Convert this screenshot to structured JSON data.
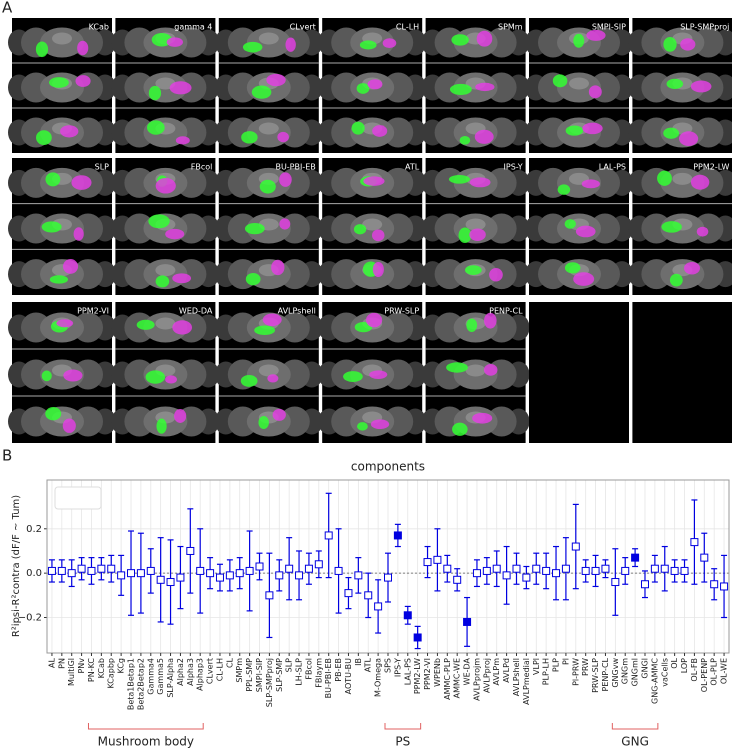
{
  "panel_a": {
    "label": "A",
    "tiles": [
      "KCab",
      "gamma 4",
      "CLvert",
      "CL-LH",
      "SPMm",
      "SMPl-SIP",
      "SLP-SMPproj",
      "SLP",
      "FBcol",
      "BU-PBI-EB",
      "ATL",
      "IPS-Y",
      "LAL-PS",
      "PPM2-LW",
      "PPM2-VI",
      "WED-DA",
      "AVLPshell",
      "PRW-SLP",
      "PENP-CL"
    ]
  },
  "chart_data": {
    "type": "errorbar",
    "panel_label": "B",
    "title": "components",
    "ylabel": "R²ipsi-R²contra (dF/F ~ Tum)",
    "categories": [
      "AL",
      "PN",
      "MultiGl",
      "PNv",
      "PN-KC",
      "KCab",
      "KCapbp",
      "KCg",
      "Beta1Betap1",
      "Beta2Betap2",
      "Gamma4",
      "Gamma5",
      "SLP-Alpha",
      "Alpha2",
      "Alpha3",
      "Alphap3",
      "CLvert",
      "CL-LH",
      "CL",
      "SMPm",
      "PPL-SMP",
      "SMPl-SIP",
      "SLP-SMPproj",
      "SLP-SMP",
      "SLP",
      "LH-SLP",
      "FBcol",
      "FBlaym",
      "BU-PBI-EB",
      "PB-EB",
      "AOTU-BU",
      "IB",
      "ATL",
      "M-Omega",
      "SPS",
      "IPS-Y",
      "LAL-PS",
      "PPM2-LW",
      "PPM2-VI",
      "WPENb",
      "AMMC-PLP",
      "AMMC-WE",
      "WE-DA",
      "AVLPprojm",
      "AVLPproj",
      "AVLPm",
      "AVLPd",
      "AVLPshell",
      "AVLPmedial",
      "VLPl",
      "PLP-LH",
      "PLP",
      "Pl",
      "Pl-PRW",
      "PRW",
      "PRW-SLP",
      "PENP-CL",
      "GNGvw",
      "GNGm",
      "GNGml",
      "GNGl",
      "GNG-AMMC",
      "vaCells",
      "OL",
      "LOP",
      "OL-FB",
      "OL-PENP",
      "OL-PLP",
      "OL-WE"
    ],
    "values": [
      0.01,
      0.01,
      0.0,
      0.02,
      0.01,
      0.02,
      0.02,
      -0.01,
      0.0,
      0.0,
      0.01,
      -0.03,
      -0.04,
      -0.02,
      0.1,
      0.01,
      0.0,
      -0.02,
      -0.01,
      0.0,
      0.01,
      0.03,
      -0.1,
      -0.01,
      0.02,
      -0.01,
      0.02,
      0.04,
      0.17,
      0.01,
      -0.09,
      -0.01,
      -0.1,
      -0.15,
      -0.02,
      0.17,
      -0.19,
      -0.29,
      0.05,
      0.06,
      0.02,
      -0.03,
      -0.22,
      0.0,
      0.01,
      0.02,
      -0.01,
      0.02,
      -0.02,
      0.02,
      0.01,
      0.0,
      0.02,
      0.12,
      0.01,
      0.01,
      0.02,
      -0.04,
      0.01,
      0.07,
      -0.05,
      0.02,
      0.02,
      0.01,
      0.01,
      0.14,
      0.07,
      -0.05,
      -0.06
    ],
    "errors": [
      0.05,
      0.05,
      0.06,
      0.05,
      0.06,
      0.05,
      0.06,
      0.09,
      0.19,
      0.18,
      0.1,
      0.19,
      0.19,
      0.14,
      0.19,
      0.19,
      0.07,
      0.06,
      0.07,
      0.07,
      0.18,
      0.06,
      0.19,
      0.07,
      0.14,
      0.11,
      0.07,
      0.06,
      0.19,
      0.19,
      0.07,
      0.08,
      0.1,
      0.12,
      0.11,
      0.05,
      0.04,
      0.05,
      0.07,
      0.14,
      0.06,
      0.05,
      0.11,
      0.06,
      0.06,
      0.08,
      0.13,
      0.07,
      0.05,
      0.07,
      0.08,
      0.12,
      0.14,
      0.19,
      0.05,
      0.07,
      0.04,
      0.15,
      0.06,
      0.04,
      0.06,
      0.06,
      0.1,
      0.05,
      0.05,
      0.19,
      0.11,
      0.07,
      0.14
    ],
    "filled": [
      false,
      false,
      false,
      false,
      false,
      false,
      false,
      false,
      false,
      false,
      false,
      false,
      false,
      false,
      false,
      false,
      false,
      false,
      false,
      false,
      false,
      false,
      false,
      false,
      false,
      false,
      false,
      false,
      false,
      false,
      false,
      false,
      false,
      false,
      false,
      true,
      true,
      true,
      false,
      false,
      false,
      false,
      true,
      false,
      false,
      false,
      false,
      false,
      false,
      false,
      false,
      false,
      false,
      false,
      false,
      false,
      false,
      false,
      false,
      true,
      false,
      false,
      false,
      false,
      false,
      false,
      false,
      false,
      false
    ],
    "color": "#0000e0",
    "ylim": [
      -0.36,
      0.42
    ],
    "yticks": [
      {
        "value": -0.2,
        "label": "−0.2"
      },
      {
        "value": 0,
        "label": "0.0"
      },
      0.2
    ],
    "grid": true,
    "groups": [
      {
        "name": "Mushroom body",
        "from": "PN-KC",
        "to": "Alphap3"
      },
      {
        "name": "PS",
        "from": "SPS",
        "to": "PPM2-LW"
      },
      {
        "name": "GNG",
        "from": "GNGvw",
        "to": "GNG-AMMC"
      }
    ]
  }
}
